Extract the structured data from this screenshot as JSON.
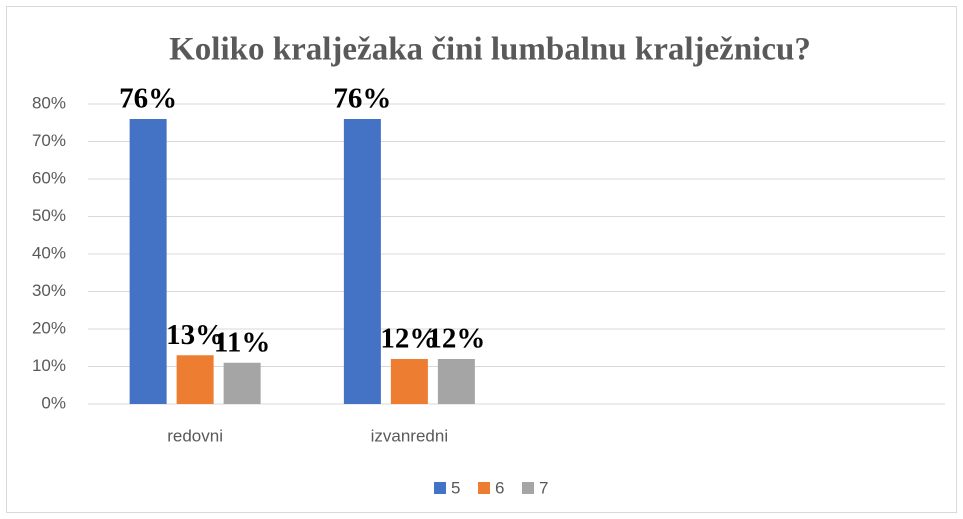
{
  "chart_data": {
    "type": "bar",
    "title": "Koliko kralježaka čini lumbalnu kralježnicu?",
    "categories": [
      "redovni",
      "izvanredni",
      null,
      null
    ],
    "series": [
      {
        "name": "5",
        "color": "#4472c4",
        "values": [
          76,
          76,
          null,
          null
        ],
        "value_labels": [
          "76%",
          "76%",
          null,
          null
        ]
      },
      {
        "name": "6",
        "color": "#ed7d31",
        "values": [
          13,
          12,
          null,
          null
        ],
        "value_labels": [
          "13%",
          "12%",
          null,
          null
        ]
      },
      {
        "name": "7",
        "color": "#a5a5a5",
        "values": [
          11,
          12,
          null,
          null
        ],
        "value_labels": [
          "11%",
          "12%",
          null,
          null
        ]
      }
    ],
    "ylim": [
      0,
      80
    ],
    "yticks": [
      {
        "value": 0,
        "label": "0%"
      },
      {
        "value": 10,
        "label": "10%"
      },
      {
        "value": 20,
        "label": "20%"
      },
      {
        "value": 30,
        "label": "30%"
      },
      {
        "value": 40,
        "label": "40%"
      },
      {
        "value": 50,
        "label": "50%"
      },
      {
        "value": 60,
        "label": "60%"
      },
      {
        "value": 70,
        "label": "70%"
      },
      {
        "value": 80,
        "label": "80%"
      }
    ],
    "grid": true,
    "legend": "bottom"
  }
}
